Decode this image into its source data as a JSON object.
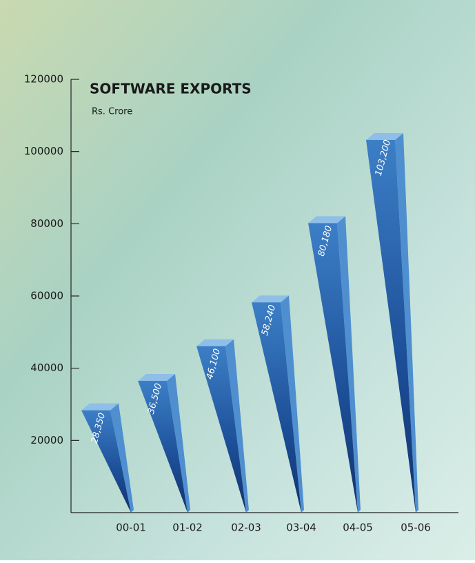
{
  "chart_data": {
    "type": "bar",
    "title": "SOFTWARE EXPORTS",
    "subtitle": "Rs. Crore",
    "categories": [
      "00-01",
      "01-02",
      "02-03",
      "03-04",
      "04-05",
      "05-06"
    ],
    "values": [
      28350,
      36500,
      46100,
      58240,
      80180,
      103200
    ],
    "value_labels": [
      "28,350",
      "36,500",
      "46,100",
      "58,240",
      "80,180",
      "103,200"
    ],
    "color": "#2f6fb8",
    "ylim": [
      0,
      120000
    ],
    "yticks": [
      20000,
      40000,
      60000,
      80000,
      100000,
      120000
    ]
  }
}
